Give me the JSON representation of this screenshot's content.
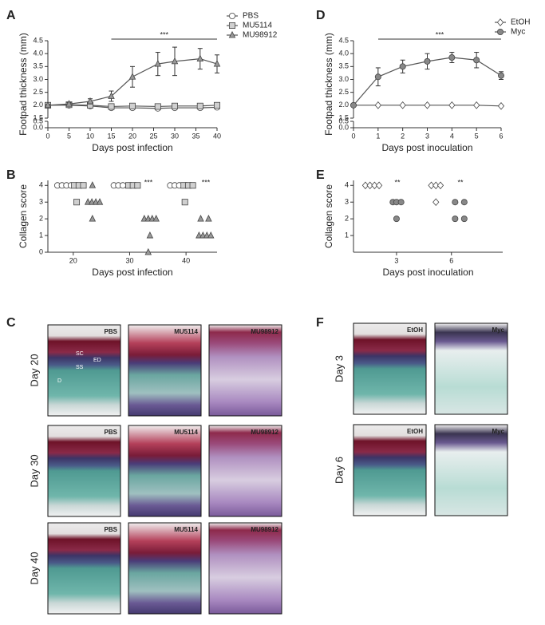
{
  "panel_labels": [
    "A",
    "B",
    "C",
    "D",
    "E",
    "F"
  ],
  "chart_data": [
    {
      "type": "line",
      "xlabel": "Days post infection",
      "ylabel": "Footpad thickness (mm)",
      "x": [
        0,
        5,
        10,
        15,
        20,
        26,
        30,
        36,
        40
      ],
      "xlim": [
        0,
        40
      ],
      "xticks": [
        0,
        5,
        10,
        15,
        20,
        25,
        30,
        35,
        40
      ],
      "ylim": [
        0,
        4.5
      ],
      "ybreak": [
        0.5,
        1.5
      ],
      "yticks": [
        {
          "value": 0,
          "label": "0.0"
        },
        0.5,
        1.5,
        {
          "value": 2,
          "label": "2.0"
        },
        2.5,
        {
          "value": 3,
          "label": "3.0"
        },
        3.5,
        {
          "value": 4,
          "label": "4.0"
        },
        4.5
      ],
      "series": [
        {
          "name": "PBS",
          "marker": "circle",
          "color": "#ffffff",
          "values": [
            2.0,
            2.0,
            1.97,
            1.9,
            1.9,
            1.88,
            1.9,
            1.9,
            1.92
          ]
        },
        {
          "name": "MU5114",
          "marker": "square",
          "color": "#d0d0d0",
          "values": [
            2.0,
            2.02,
            2.0,
            1.95,
            1.97,
            1.95,
            1.97,
            1.97,
            2.0
          ]
        },
        {
          "name": "MU98912",
          "marker": "triangle",
          "color": "#999999",
          "values": [
            2.0,
            2.05,
            2.15,
            2.35,
            3.1,
            3.6,
            3.7,
            3.8,
            3.6
          ],
          "errors": [
            0.03,
            0.05,
            0.1,
            0.2,
            0.4,
            0.45,
            0.55,
            0.4,
            0.35
          ]
        }
      ],
      "annotations": [
        "***"
      ]
    },
    {
      "type": "scatter",
      "xlabel": "Days post infection",
      "ylabel": "Collagen score",
      "xlim": [
        15.5,
        45.5
      ],
      "xticks": [
        20,
        30,
        40
      ],
      "ylim": [
        0,
        4.3
      ],
      "yticks": [
        0,
        1,
        2,
        3,
        4
      ],
      "series": [
        {
          "marker": "circle",
          "color": "#ffffff",
          "x": [
            17.2,
            18.0,
            18.8,
            19.6,
            27.2,
            28.0,
            28.8,
            37.2,
            38.0,
            38.8
          ],
          "values": [
            4,
            4,
            4,
            4,
            4,
            4,
            4,
            4,
            4,
            4
          ]
        },
        {
          "marker": "square",
          "color": "#d0d0d0",
          "x": [
            20.2,
            21.0,
            21.8,
            20.6,
            29.8,
            30.6,
            31.4,
            39.6,
            40.4,
            41.2,
            39.8
          ],
          "values": [
            4,
            4,
            4,
            3,
            4,
            4,
            4,
            4,
            4,
            4,
            3
          ]
        },
        {
          "marker": "triangle",
          "color": "#999999",
          "x": [
            23.4,
            22.6,
            23.3,
            24.0,
            24.7,
            23.4,
            32.6,
            33.3,
            34.0,
            34.7,
            33.6,
            33.3,
            42.6,
            44.0,
            42.3,
            43.0,
            43.7,
            44.4
          ],
          "values": [
            4,
            3,
            3,
            3,
            3,
            2,
            2,
            2,
            2,
            2,
            1,
            0,
            2,
            2,
            1,
            1,
            1,
            1
          ]
        }
      ],
      "annotations": [
        "***",
        "***"
      ]
    },
    {
      "type": "line",
      "xlabel": "Days post inoculation",
      "ylabel": "Footpad thickness (mm)",
      "x": [
        0,
        1,
        2,
        3,
        4,
        5,
        6
      ],
      "xlim": [
        0,
        6
      ],
      "xticks": [
        0,
        1,
        2,
        3,
        4,
        5,
        6
      ],
      "ylim": [
        0,
        4.5
      ],
      "ybreak": [
        0.5,
        1.5
      ],
      "yticks": [
        {
          "value": 0,
          "label": "0.0"
        },
        0.5,
        1.5,
        {
          "value": 2,
          "label": "2.0"
        },
        2.5,
        {
          "value": 3,
          "label": "3.0"
        },
        3.5,
        {
          "value": 4,
          "label": "4.0"
        },
        4.5
      ],
      "series": [
        {
          "name": "EtOH",
          "marker": "diamond",
          "color": "#ffffff",
          "values": [
            2.0,
            2.0,
            2.0,
            2.0,
            2.0,
            2.0,
            1.97
          ]
        },
        {
          "name": "Myc",
          "marker": "circle",
          "color": "#888888",
          "values": [
            2.0,
            3.1,
            3.5,
            3.7,
            3.85,
            3.75,
            3.15
          ],
          "errors": [
            0.02,
            0.35,
            0.25,
            0.3,
            0.2,
            0.3,
            0.15
          ]
        }
      ],
      "annotations": [
        "***"
      ]
    },
    {
      "type": "scatter",
      "xlabel": "Days post inoculation",
      "ylabel": "Collagen score",
      "xlim": [
        0.65,
        8.8
      ],
      "xticks": [
        3,
        6
      ],
      "ylim": [
        0,
        4.3
      ],
      "yticks": [
        1,
        2,
        3,
        4
      ],
      "series": [
        {
          "marker": "diamond",
          "color": "#ffffff",
          "x": [
            1.3,
            1.55,
            1.8,
            2.05,
            4.9,
            5.15,
            5.4,
            5.15
          ],
          "values": [
            4,
            4,
            4,
            4,
            4,
            4,
            4,
            3
          ]
        },
        {
          "marker": "circle",
          "color": "#888888",
          "x": [
            2.8,
            3.0,
            3.25,
            3.0,
            6.2,
            6.7,
            6.2,
            6.7
          ],
          "values": [
            3,
            3,
            3,
            2,
            3,
            3,
            2,
            2
          ]
        }
      ],
      "annotations": [
        "**",
        "**"
      ]
    }
  ],
  "panel_c": {
    "rows": [
      "Day 20",
      "Day 30",
      "Day 40"
    ],
    "images": [
      [
        "PBS",
        "MU5114",
        "MU98912"
      ],
      [
        "PBS",
        "MU5114",
        "MU98912"
      ],
      [
        "PBS",
        "MU5114",
        "MU98912"
      ]
    ],
    "layers": [
      "SC",
      "ED",
      "SS",
      "D"
    ]
  },
  "panel_f": {
    "rows": [
      "Day 3",
      "Day 6"
    ],
    "images": [
      [
        "EtOH",
        "Myc"
      ],
      [
        "EtOH",
        "Myc"
      ]
    ]
  }
}
